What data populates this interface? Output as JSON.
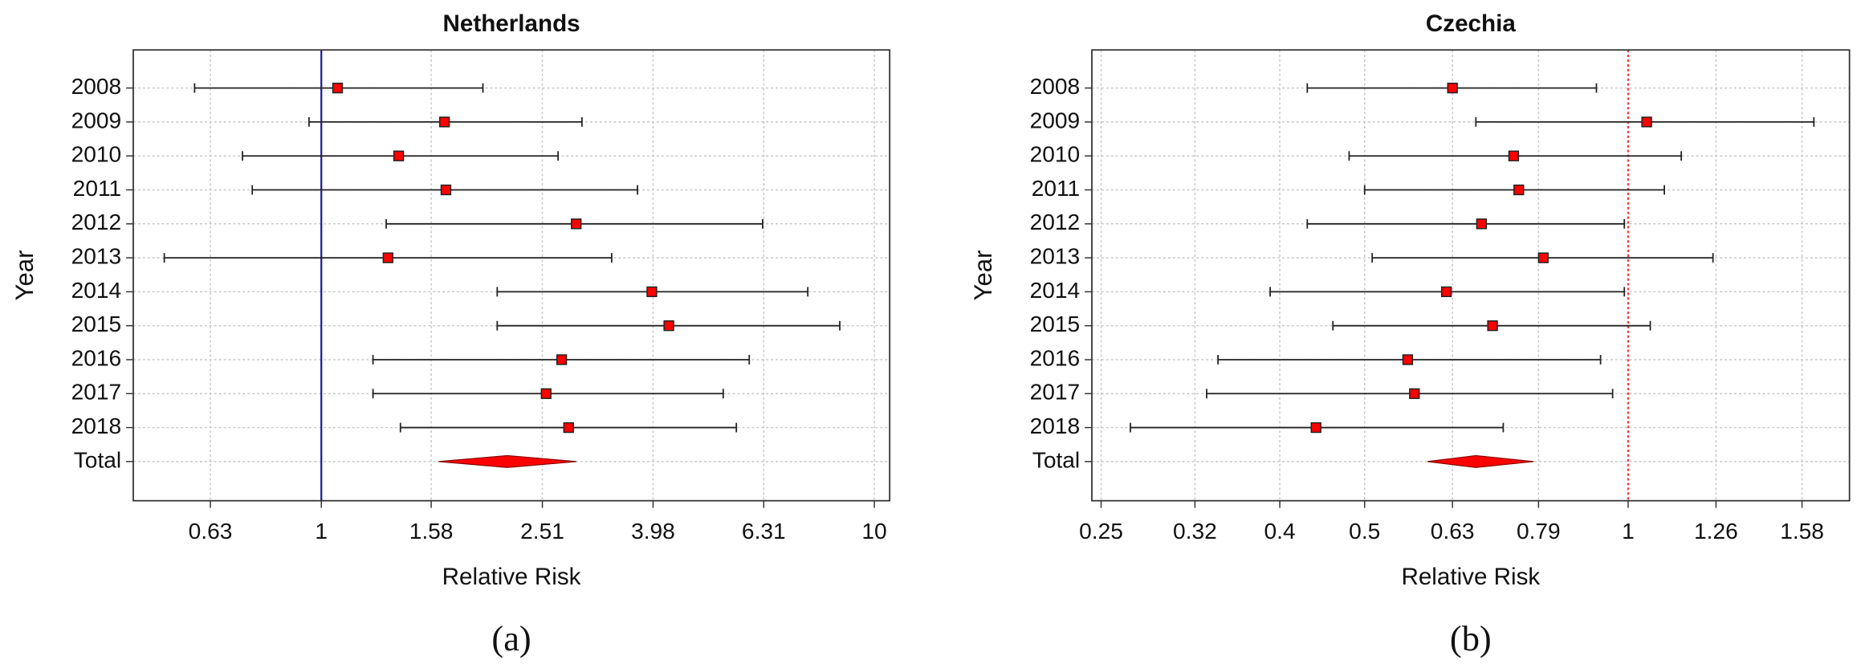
{
  "chart_data": [
    {
      "type": "forest",
      "title": "Netherlands",
      "panel_label": "(a)",
      "x_label": "Relative Risk",
      "y_label": "Year",
      "categories": [
        "2008",
        "2009",
        "2010",
        "2011",
        "2012",
        "2013",
        "2014",
        "2015",
        "2016",
        "2017",
        "2018",
        "Total"
      ],
      "values": [
        1.07,
        1.67,
        1.38,
        1.68,
        2.89,
        1.32,
        3.96,
        4.25,
        2.72,
        2.55,
        2.8,
        2.17
      ],
      "lower": [
        0.59,
        0.95,
        0.72,
        0.75,
        1.31,
        0.52,
        2.08,
        2.08,
        1.24,
        1.24,
        1.39,
        1.63
      ],
      "upper": [
        1.96,
        2.96,
        2.68,
        3.73,
        6.28,
        3.35,
        7.58,
        8.66,
        5.94,
        5.33,
        5.63,
        2.89
      ],
      "xlim": [
        0.457,
        10.66
      ],
      "xticks": [
        0.63,
        1,
        1.58,
        2.51,
        3.98,
        6.31,
        10
      ],
      "log_x": true,
      "grid": true,
      "color": "#ff0000",
      "ref_line": {
        "value": 1,
        "color": "#1a1a99",
        "style": "solid"
      }
    },
    {
      "type": "forest",
      "title": "Czechia",
      "panel_label": "(b)",
      "x_label": "Relative Risk",
      "y_label": "Year",
      "categories": [
        "2008",
        "2009",
        "2010",
        "2011",
        "2012",
        "2013",
        "2014",
        "2015",
        "2016",
        "2017",
        "2018",
        "Total"
      ],
      "values": [
        0.63,
        1.05,
        0.74,
        0.75,
        0.68,
        0.8,
        0.62,
        0.7,
        0.56,
        0.57,
        0.44,
        0.67
      ],
      "lower": [
        0.43,
        0.67,
        0.48,
        0.5,
        0.43,
        0.51,
        0.39,
        0.46,
        0.34,
        0.33,
        0.27,
        0.59
      ],
      "upper": [
        0.92,
        1.63,
        1.15,
        1.1,
        0.99,
        1.25,
        0.99,
        1.06,
        0.93,
        0.96,
        0.72,
        0.78
      ],
      "xlim": [
        0.244,
        1.79
      ],
      "xticks": [
        0.25,
        0.32,
        0.4,
        0.5,
        0.63,
        0.79,
        1,
        1.26,
        1.58
      ],
      "log_x": true,
      "grid": true,
      "color": "#ff0000",
      "ref_line": {
        "value": 1,
        "color": "#ff3333",
        "style": "dotted"
      }
    }
  ]
}
